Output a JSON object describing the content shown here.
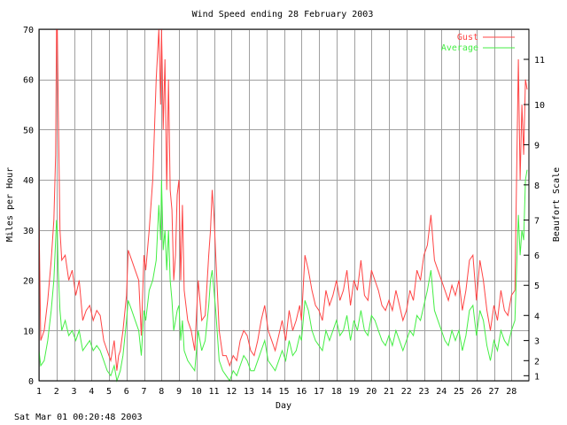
{
  "chart_data": {
    "type": "line",
    "title": "Wind Speed ending 28 February 2003",
    "xlabel": "Day",
    "ylabel": "Miles per Hour",
    "y2label": "Beaufort Scale",
    "xlim": [
      1,
      29
    ],
    "ylim": [
      0,
      70
    ],
    "x_ticks": [
      1,
      2,
      3,
      4,
      5,
      6,
      7,
      8,
      9,
      10,
      11,
      12,
      13,
      14,
      15,
      16,
      17,
      18,
      19,
      20,
      21,
      22,
      23,
      24,
      25,
      26,
      27,
      28
    ],
    "y_ticks": [
      0,
      10,
      20,
      30,
      40,
      50,
      60,
      70
    ],
    "beaufort_ticks": [
      {
        "label": "1",
        "mph": 1
      },
      {
        "label": "2",
        "mph": 4
      },
      {
        "label": "3",
        "mph": 8
      },
      {
        "label": "4",
        "mph": 13
      },
      {
        "label": "5",
        "mph": 19
      },
      {
        "label": "6",
        "mph": 25
      },
      {
        "label": "7",
        "mph": 32
      },
      {
        "label": "8",
        "mph": 39
      },
      {
        "label": "9",
        "mph": 47
      },
      {
        "label": "10",
        "mph": 55
      },
      {
        "label": "11",
        "mph": 64
      }
    ],
    "grid": true,
    "legend_position": "top-right",
    "series": [
      {
        "name": "Gust",
        "color": "#ff4444",
        "x": [
          1.0,
          1.1,
          1.3,
          1.5,
          1.7,
          1.85,
          1.95,
          2.0,
          2.05,
          2.1,
          2.2,
          2.3,
          2.5,
          2.7,
          2.9,
          3.1,
          3.3,
          3.5,
          3.7,
          3.9,
          4.1,
          4.3,
          4.5,
          4.7,
          4.9,
          5.1,
          5.3,
          5.45,
          5.55,
          5.65,
          5.8,
          6.0,
          6.1,
          6.3,
          6.5,
          6.7,
          6.85,
          7.0,
          7.1,
          7.3,
          7.5,
          7.7,
          7.85,
          7.95,
          8.0,
          8.05,
          8.1,
          8.2,
          8.3,
          8.4,
          8.5,
          8.6,
          8.7,
          8.8,
          8.9,
          9.0,
          9.1,
          9.2,
          9.3,
          9.5,
          9.7,
          9.9,
          10.1,
          10.3,
          10.5,
          10.7,
          10.8,
          10.9,
          11.0,
          11.1,
          11.3,
          11.5,
          11.7,
          11.9,
          12.1,
          12.3,
          12.5,
          12.7,
          12.9,
          13.1,
          13.3,
          13.5,
          13.7,
          13.9,
          14.1,
          14.3,
          14.5,
          14.7,
          14.9,
          15.1,
          15.3,
          15.5,
          15.7,
          15.9,
          16.0,
          16.2,
          16.4,
          16.6,
          16.8,
          17.0,
          17.2,
          17.4,
          17.6,
          17.8,
          18.0,
          18.2,
          18.4,
          18.6,
          18.8,
          19.0,
          19.2,
          19.4,
          19.6,
          19.8,
          20.0,
          20.2,
          20.4,
          20.6,
          20.8,
          21.0,
          21.2,
          21.4,
          21.6,
          21.8,
          22.0,
          22.2,
          22.4,
          22.6,
          22.8,
          23.0,
          23.2,
          23.4,
          23.6,
          23.8,
          24.0,
          24.2,
          24.4,
          24.6,
          24.8,
          25.0,
          25.2,
          25.4,
          25.6,
          25.8,
          26.0,
          26.2,
          26.4,
          26.6,
          26.8,
          27.0,
          27.2,
          27.4,
          27.6,
          27.8,
          28.0,
          28.2,
          28.4,
          28.5,
          28.6,
          28.7,
          28.8,
          28.9
        ],
        "y": [
          33,
          8,
          10,
          16,
          24,
          32,
          45,
          70,
          70,
          55,
          30,
          24,
          25,
          20,
          22,
          17,
          20,
          12,
          14,
          15,
          12,
          14,
          13,
          8,
          6,
          4,
          8,
          2,
          5,
          6,
          10,
          17,
          26,
          24,
          22,
          20,
          9,
          25,
          22,
          30,
          40,
          60,
          70,
          55,
          70,
          62,
          50,
          64,
          38,
          60,
          38,
          34,
          20,
          25,
          37,
          40,
          20,
          35,
          18,
          12,
          10,
          6,
          20,
          12,
          13,
          25,
          30,
          38,
          33,
          25,
          10,
          5,
          5,
          3,
          5,
          4,
          8,
          10,
          9,
          6,
          5,
          8,
          12,
          15,
          10,
          8,
          6,
          9,
          12,
          8,
          14,
          10,
          12,
          15,
          12,
          25,
          22,
          18,
          15,
          14,
          12,
          18,
          15,
          17,
          20,
          16,
          18,
          22,
          15,
          20,
          18,
          24,
          17,
          16,
          22,
          20,
          18,
          15,
          14,
          16,
          14,
          18,
          15,
          12,
          14,
          18,
          16,
          22,
          20,
          25,
          27,
          33,
          24,
          22,
          20,
          18,
          16,
          19,
          17,
          20,
          14,
          18,
          24,
          25,
          16,
          24,
          20,
          14,
          10,
          15,
          12,
          18,
          14,
          13,
          17,
          18,
          64,
          40,
          55,
          45,
          60,
          58
        ]
      },
      {
        "name": "Average",
        "color": "#44ee44",
        "x": [
          1.0,
          1.1,
          1.3,
          1.5,
          1.7,
          1.85,
          1.95,
          2.0,
          2.05,
          2.1,
          2.2,
          2.3,
          2.5,
          2.7,
          2.9,
          3.1,
          3.3,
          3.5,
          3.7,
          3.9,
          4.1,
          4.3,
          4.5,
          4.7,
          4.9,
          5.1,
          5.3,
          5.45,
          5.55,
          5.65,
          5.8,
          6.0,
          6.1,
          6.3,
          6.5,
          6.7,
          6.85,
          7.0,
          7.1,
          7.3,
          7.5,
          7.7,
          7.85,
          7.95,
          8.0,
          8.05,
          8.1,
          8.2,
          8.3,
          8.4,
          8.5,
          8.6,
          8.7,
          8.8,
          8.9,
          9.0,
          9.1,
          9.2,
          9.3,
          9.5,
          9.7,
          9.9,
          10.1,
          10.3,
          10.5,
          10.7,
          10.8,
          10.9,
          11.0,
          11.1,
          11.3,
          11.5,
          11.7,
          11.9,
          12.1,
          12.3,
          12.5,
          12.7,
          12.9,
          13.1,
          13.3,
          13.5,
          13.7,
          13.9,
          14.1,
          14.3,
          14.5,
          14.7,
          14.9,
          15.1,
          15.3,
          15.5,
          15.7,
          15.9,
          16.0,
          16.2,
          16.4,
          16.6,
          16.8,
          17.0,
          17.2,
          17.4,
          17.6,
          17.8,
          18.0,
          18.2,
          18.4,
          18.6,
          18.8,
          19.0,
          19.2,
          19.4,
          19.6,
          19.8,
          20.0,
          20.2,
          20.4,
          20.6,
          20.8,
          21.0,
          21.2,
          21.4,
          21.6,
          21.8,
          22.0,
          22.2,
          22.4,
          22.6,
          22.8,
          23.0,
          23.2,
          23.4,
          23.6,
          23.8,
          24.0,
          24.2,
          24.4,
          24.6,
          24.8,
          25.0,
          25.2,
          25.4,
          25.6,
          25.8,
          26.0,
          26.2,
          26.4,
          26.6,
          26.8,
          27.0,
          27.2,
          27.4,
          27.6,
          27.8,
          28.0,
          28.2,
          28.4,
          28.5,
          28.6,
          28.7,
          28.8,
          28.9
        ],
        "y": [
          6,
          3,
          4,
          8,
          14,
          20,
          28,
          32,
          30,
          22,
          14,
          10,
          12,
          9,
          10,
          8,
          10,
          6,
          7,
          8,
          6,
          7,
          6,
          4,
          2,
          1,
          3,
          0,
          1,
          2,
          5,
          12,
          16,
          14,
          12,
          10,
          5,
          14,
          12,
          18,
          20,
          24,
          35,
          28,
          40,
          34,
          26,
          30,
          22,
          30,
          20,
          16,
          10,
          12,
          14,
          15,
          8,
          12,
          6,
          4,
          3,
          2,
          10,
          6,
          8,
          15,
          20,
          22,
          18,
          14,
          4,
          2,
          1,
          0,
          2,
          1,
          3,
          5,
          4,
          2,
          2,
          4,
          6,
          8,
          4,
          3,
          2,
          4,
          6,
          4,
          8,
          5,
          6,
          9,
          8,
          16,
          14,
          10,
          8,
          7,
          6,
          10,
          8,
          10,
          12,
          9,
          10,
          13,
          8,
          12,
          10,
          14,
          10,
          9,
          13,
          12,
          10,
          8,
          7,
          9,
          7,
          10,
          8,
          6,
          8,
          10,
          9,
          13,
          12,
          15,
          18,
          22,
          14,
          12,
          10,
          8,
          7,
          10,
          8,
          10,
          6,
          9,
          14,
          15,
          9,
          14,
          12,
          7,
          4,
          8,
          6,
          10,
          8,
          7,
          10,
          12,
          33,
          25,
          30,
          28,
          40,
          42
        ]
      }
    ]
  },
  "footer": {
    "timestamp": "Sat Mar 01 00:20:48 2003"
  }
}
